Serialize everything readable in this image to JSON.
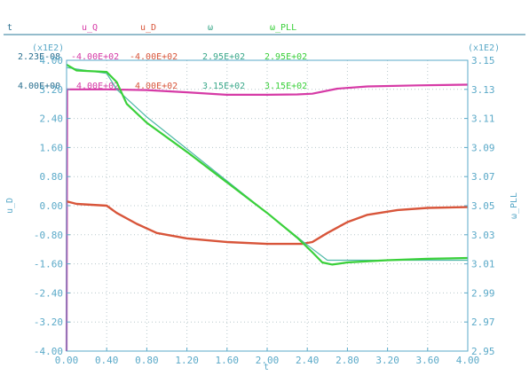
{
  "header": {
    "col0": {
      "name": "t",
      "min": "2.23E-08",
      "max": "4.00E+00"
    },
    "col1": {
      "name": "u_Q",
      "min": "-4.00E+02",
      "max": "4.00E+02"
    },
    "col2": {
      "name": "u_D",
      "min": "-4.00E+02",
      "max": "4.00E+02"
    },
    "col3": {
      "name": "ω",
      "min": "2.95E+02",
      "max": "3.15E+02"
    },
    "col4": {
      "name": "ω_PLL",
      "min": "2.95E+02",
      "max": "3.15E+02"
    }
  },
  "colors": {
    "axis": "#5aa9c8",
    "grid": "#b8c8cc",
    "header_rule": "#2a7a9a",
    "u_Q": "#d63aa6",
    "u_D": "#d8553a",
    "omega": "#4fb8a8",
    "omega_PLL": "#3ad03a",
    "t_header": "#2a6f8f",
    "omega_header": "#3aa88a"
  },
  "chart_data": {
    "type": "line",
    "xlabel": "t",
    "ylabel_left": "u_D",
    "ylabel_right": "ω_PLL",
    "left_scale": "(x1E2)",
    "right_scale": "(x1E2)",
    "xlim": [
      0,
      4
    ],
    "ylim_left": [
      -4.0,
      4.0
    ],
    "ylim_right": [
      2.95,
      3.15
    ],
    "x_ticks": [
      "0.00",
      "0.40",
      "0.80",
      "1.20",
      "1.60",
      "2.00",
      "2.40",
      "2.80",
      "3.20",
      "3.60",
      "4.00"
    ],
    "y_ticks_left": [
      "4.00",
      "3.20",
      "2.40",
      "1.60",
      "0.80",
      "0.00",
      "-0.80",
      "-1.60",
      "-2.40",
      "-3.20",
      "-4.00"
    ],
    "y_ticks_right": [
      "3.15",
      "3.13",
      "3.11",
      "3.09",
      "3.07",
      "3.05",
      "3.03",
      "3.01",
      "2.99",
      "2.97",
      "2.95"
    ],
    "grid": true,
    "series": [
      {
        "name": "u_Q",
        "axis": "left",
        "color_key": "u_Q",
        "width": 2.2,
        "points": [
          [
            0,
            -4.0
          ],
          [
            0.005,
            3.2
          ],
          [
            0.4,
            3.2
          ],
          [
            0.8,
            3.18
          ],
          [
            1.2,
            3.12
          ],
          [
            1.6,
            3.05
          ],
          [
            2.0,
            3.05
          ],
          [
            2.3,
            3.06
          ],
          [
            2.45,
            3.08
          ],
          [
            2.7,
            3.22
          ],
          [
            3.0,
            3.28
          ],
          [
            3.5,
            3.31
          ],
          [
            4.0,
            3.33
          ]
        ]
      },
      {
        "name": "u_D",
        "axis": "left",
        "color_key": "u_D",
        "width": 2.4,
        "points": [
          [
            0,
            0.12
          ],
          [
            0.1,
            0.05
          ],
          [
            0.4,
            0.0
          ],
          [
            0.5,
            -0.2
          ],
          [
            0.7,
            -0.5
          ],
          [
            0.9,
            -0.75
          ],
          [
            1.2,
            -0.9
          ],
          [
            1.6,
            -1.0
          ],
          [
            2.0,
            -1.05
          ],
          [
            2.35,
            -1.05
          ],
          [
            2.45,
            -1.0
          ],
          [
            2.6,
            -0.75
          ],
          [
            2.8,
            -0.45
          ],
          [
            3.0,
            -0.25
          ],
          [
            3.3,
            -0.12
          ],
          [
            3.6,
            -0.06
          ],
          [
            4.0,
            -0.04
          ]
        ]
      },
      {
        "name": "ω",
        "axis": "right",
        "color_key": "omega",
        "width": 1.2,
        "points": [
          [
            0,
            3.145
          ],
          [
            0.4,
            3.141
          ],
          [
            0.5,
            3.13
          ],
          [
            0.8,
            3.111
          ],
          [
            1.2,
            3.089
          ],
          [
            1.6,
            3.067
          ],
          [
            2.0,
            3.045
          ],
          [
            2.4,
            3.023
          ],
          [
            2.6,
            3.0125
          ],
          [
            3.0,
            3.0125
          ],
          [
            4.0,
            3.0125
          ]
        ]
      },
      {
        "name": "ω_PLL",
        "axis": "right",
        "color_key": "omega_PLL",
        "width": 2.2,
        "points": [
          [
            0,
            3.147
          ],
          [
            0.1,
            3.143
          ],
          [
            0.4,
            3.142
          ],
          [
            0.5,
            3.135
          ],
          [
            0.6,
            3.12
          ],
          [
            0.8,
            3.107
          ],
          [
            1.2,
            3.087
          ],
          [
            1.6,
            3.066
          ],
          [
            2.0,
            3.045
          ],
          [
            2.3,
            3.028
          ],
          [
            2.45,
            3.018
          ],
          [
            2.55,
            3.011
          ],
          [
            2.65,
            3.0095
          ],
          [
            2.8,
            3.011
          ],
          [
            3.2,
            3.0125
          ],
          [
            3.6,
            3.0135
          ],
          [
            4.0,
            3.014
          ]
        ]
      }
    ]
  }
}
